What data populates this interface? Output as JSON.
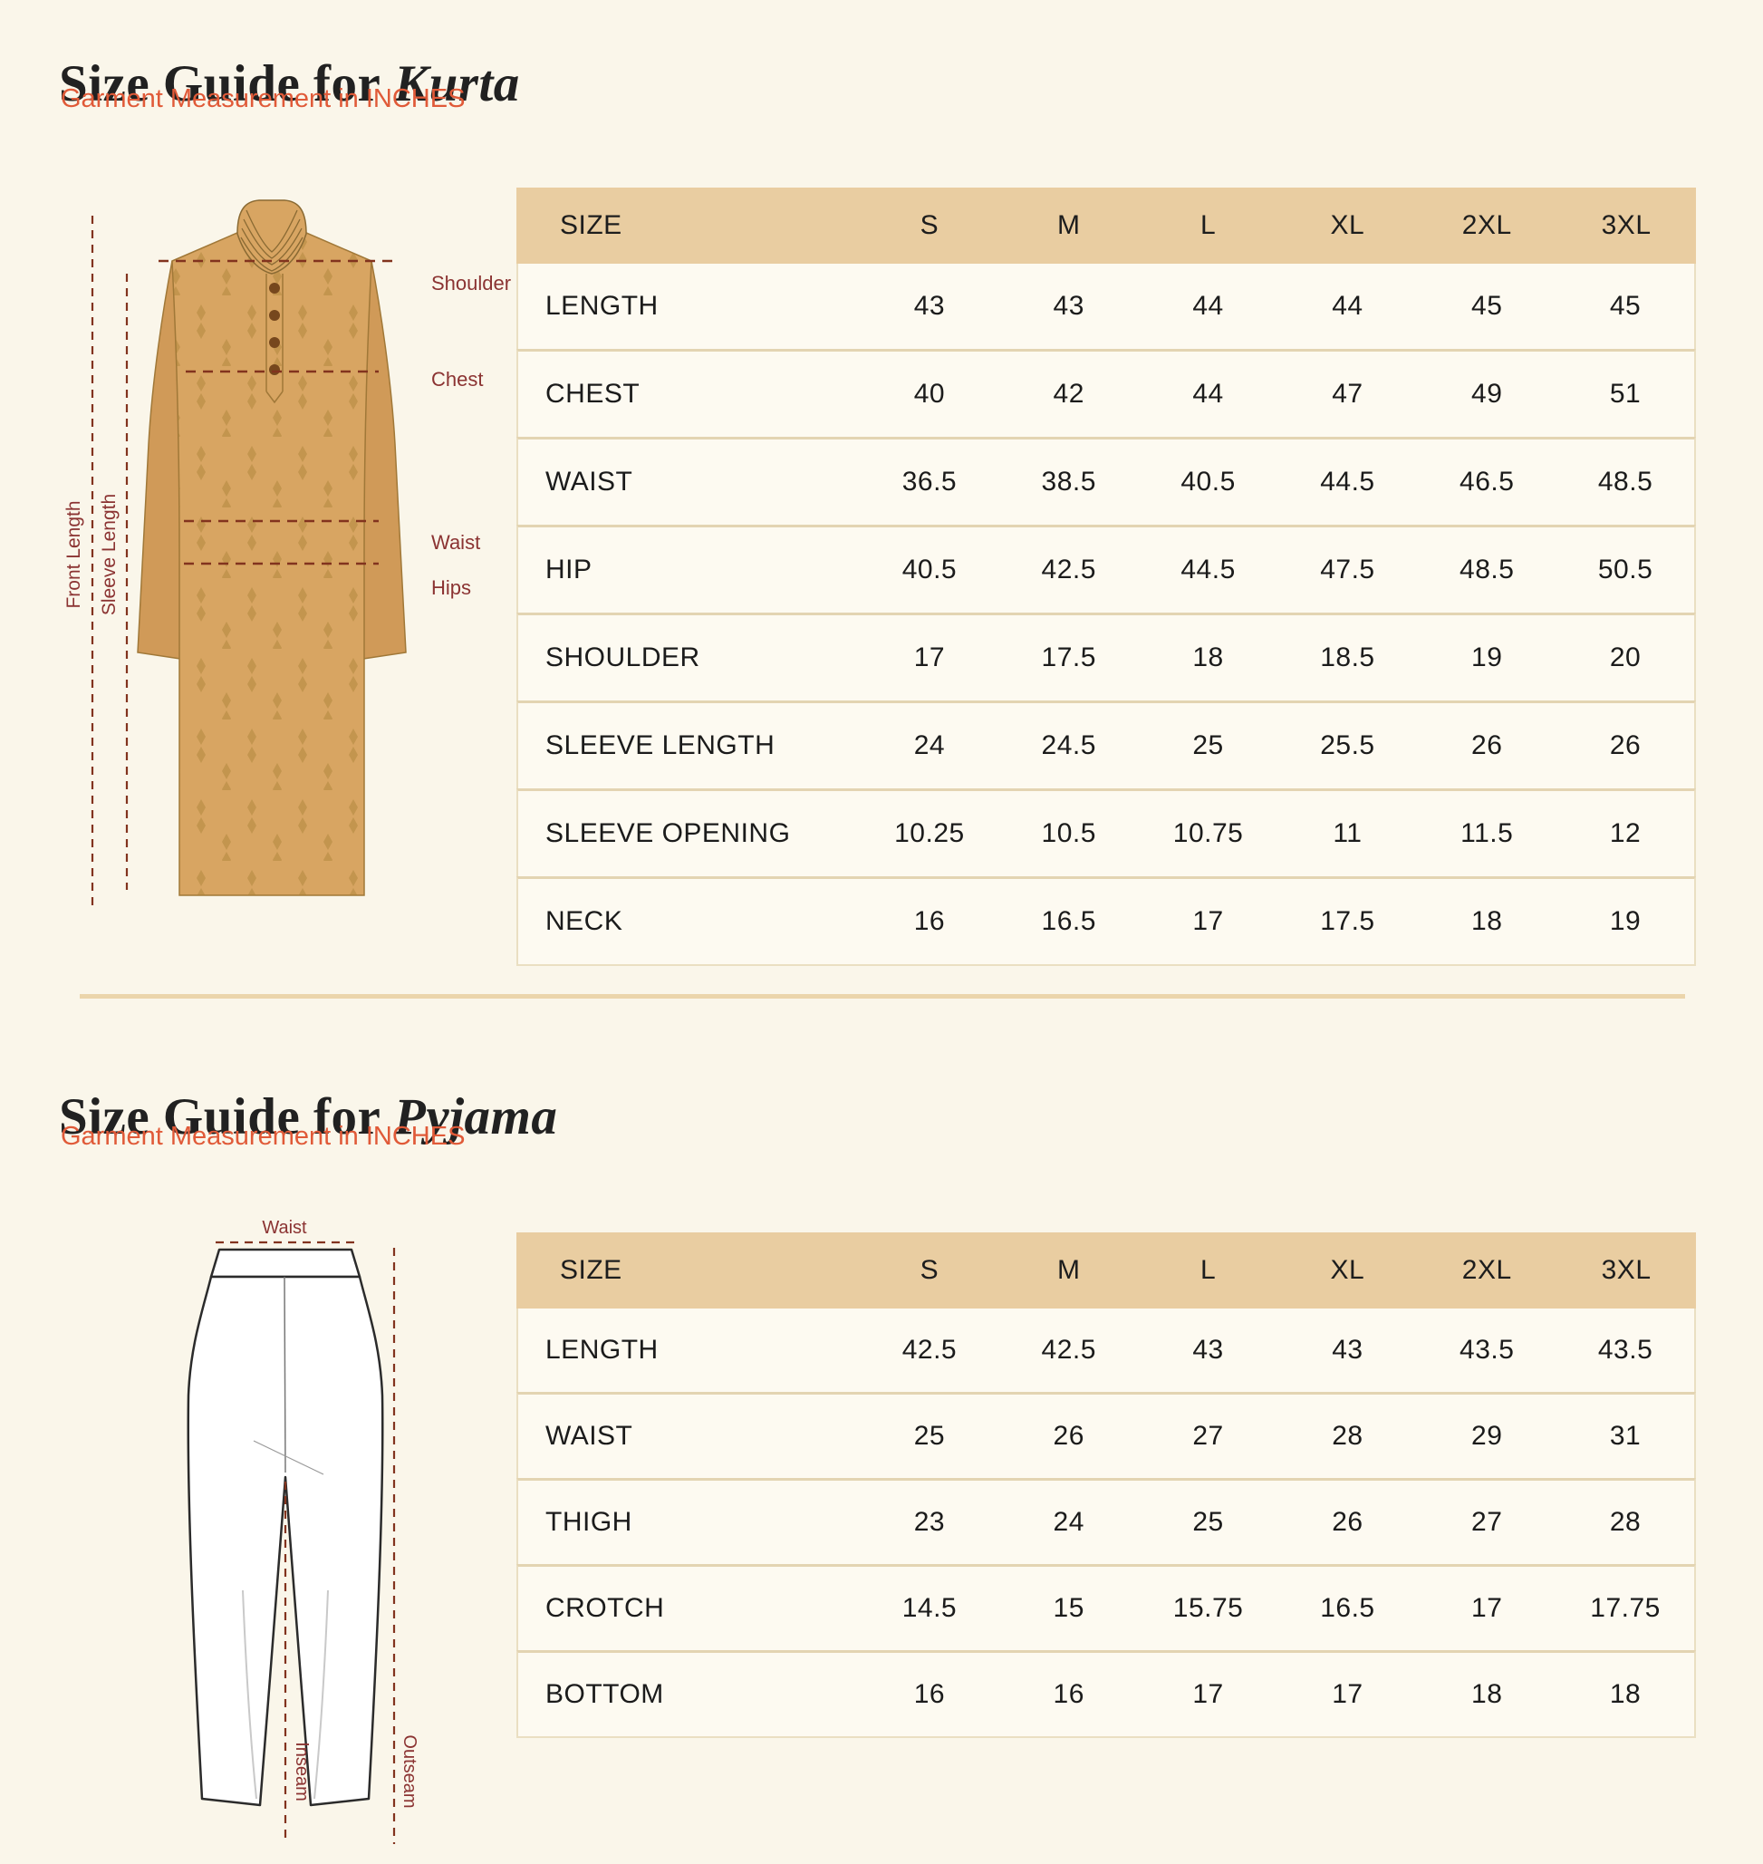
{
  "colors": {
    "page_bg": "#faf6ea",
    "table_header_bg": "#e9cda1",
    "table_body_bg": "#fdfaf1",
    "accent_orange": "#e05a38",
    "annotation_red": "#8b3332",
    "dash_red": "#82331e",
    "title_dark": "#212121"
  },
  "kurta_section": {
    "title_prefix": "Size Guide for",
    "title_emphasis": "Kurta",
    "subtitle": "Garment Measurement in INCHES",
    "diagram": {
      "front_length_label": "Front Length",
      "sleeve_length_label": "Sleeve Length",
      "shoulder_label": "Shoulder",
      "chest_label": "Chest",
      "waist_label": "Waist",
      "hips_label": "Hips"
    },
    "table": {
      "columns": [
        "SIZE",
        "S",
        "M",
        "L",
        "XL",
        "2XL",
        "3XL"
      ],
      "rows": [
        {
          "label": "LENGTH",
          "values": [
            "43",
            "43",
            "44",
            "44",
            "45",
            "45"
          ]
        },
        {
          "label": "CHEST",
          "values": [
            "40",
            "42",
            "44",
            "47",
            "49",
            "51"
          ]
        },
        {
          "label": "WAIST",
          "values": [
            "36.5",
            "38.5",
            "40.5",
            "44.5",
            "46.5",
            "48.5"
          ]
        },
        {
          "label": "HIP",
          "values": [
            "40.5",
            "42.5",
            "44.5",
            "47.5",
            "48.5",
            "50.5"
          ]
        },
        {
          "label": "SHOULDER",
          "values": [
            "17",
            "17.5",
            "18",
            "18.5",
            "19",
            "20"
          ]
        },
        {
          "label": "SLEEVE LENGTH",
          "values": [
            "24",
            "24.5",
            "25",
            "25.5",
            "26",
            "26"
          ]
        },
        {
          "label": "SLEEVE OPENING",
          "values": [
            "10.25",
            "10.5",
            "10.75",
            "11",
            "11.5",
            "12"
          ]
        },
        {
          "label": "NECK",
          "values": [
            "16",
            "16.5",
            "17",
            "17.5",
            "18",
            "19"
          ]
        }
      ]
    }
  },
  "pyjama_section": {
    "title_prefix": "Size Guide for",
    "title_emphasis": "Pyjama",
    "subtitle": "Garment Measurement in INCHES",
    "diagram": {
      "waist_label": "Waist",
      "inseam_label": "Inseam",
      "outseam_label": "Outseam"
    },
    "table": {
      "columns": [
        "SIZE",
        "S",
        "M",
        "L",
        "XL",
        "2XL",
        "3XL"
      ],
      "rows": [
        {
          "label": "LENGTH",
          "values": [
            "42.5",
            "42.5",
            "43",
            "43",
            "43.5",
            "43.5"
          ]
        },
        {
          "label": "WAIST",
          "values": [
            "25",
            "26",
            "27",
            "28",
            "29",
            "31"
          ]
        },
        {
          "label": "THIGH",
          "values": [
            "23",
            "24",
            "25",
            "26",
            "27",
            "28"
          ]
        },
        {
          "label": "CROTCH",
          "values": [
            "14.5",
            "15",
            "15.75",
            "16.5",
            "17",
            "17.75"
          ]
        },
        {
          "label": "BOTTOM",
          "values": [
            "16",
            "16",
            "17",
            "17",
            "18",
            "18"
          ]
        }
      ]
    }
  }
}
